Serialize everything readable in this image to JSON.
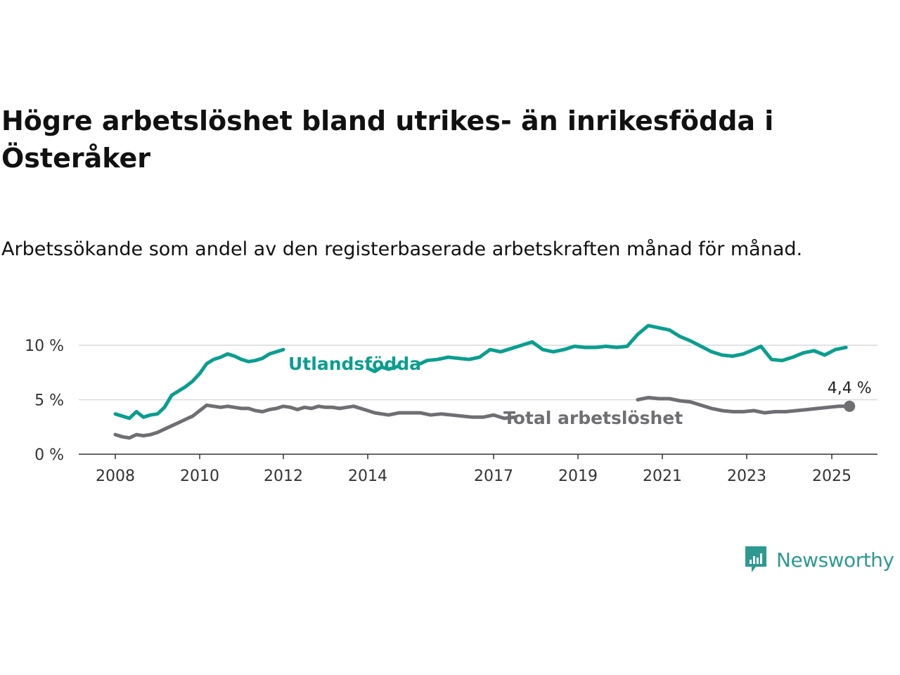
{
  "title": "Högre arbetslöshet bland utrikes- än inrikesfödda i Österåker",
  "subtitle": "Arbetssökande som andel av den registerbaserade arbetskraften månad för månad.",
  "brand": {
    "name": "Newsworthy",
    "color": "#2e9a8f"
  },
  "chart_data": {
    "type": "line",
    "unit": "%",
    "x_ticks": [
      "2008",
      "2010",
      "2012",
      "2014",
      "2017",
      "2019",
      "2021",
      "2023",
      "2025"
    ],
    "y_ticks": [
      "0 %",
      "5 %",
      "10 %"
    ],
    "ylim": [
      0,
      12
    ],
    "xlim": [
      "2007-08",
      "2026-01"
    ],
    "grid": true,
    "legend": "inline labels",
    "end_label": "4,4 %",
    "series": [
      {
        "name": "Utlandsfödda",
        "color": "#0a9e8f",
        "points": [
          [
            "2008-01",
            3.7
          ],
          [
            "2008-03",
            3.5
          ],
          [
            "2008-05",
            3.3
          ],
          [
            "2008-07",
            3.9
          ],
          [
            "2008-09",
            3.4
          ],
          [
            "2008-11",
            3.6
          ],
          [
            "2009-01",
            3.7
          ],
          [
            "2009-03",
            4.3
          ],
          [
            "2009-05",
            5.4
          ],
          [
            "2009-07",
            5.8
          ],
          [
            "2009-09",
            6.2
          ],
          [
            "2009-11",
            6.7
          ],
          [
            "2010-01",
            7.4
          ],
          [
            "2010-03",
            8.3
          ],
          [
            "2010-05",
            8.7
          ],
          [
            "2010-07",
            8.9
          ],
          [
            "2010-09",
            9.2
          ],
          [
            "2010-11",
            9.0
          ],
          [
            "2011-01",
            8.7
          ],
          [
            "2011-03",
            8.5
          ],
          [
            "2011-05",
            8.6
          ],
          [
            "2011-07",
            8.8
          ],
          [
            "2011-09",
            9.2
          ],
          [
            "2011-11",
            9.4
          ],
          [
            "2012-01",
            9.6
          ]
        ],
        "segments": [
          [
            [
              "2008-01",
              3.7
            ],
            [
              "2008-03",
              3.5
            ],
            [
              "2008-05",
              3.3
            ],
            [
              "2008-07",
              3.9
            ],
            [
              "2008-09",
              3.4
            ],
            [
              "2008-11",
              3.6
            ],
            [
              "2009-01",
              3.7
            ],
            [
              "2009-03",
              4.3
            ],
            [
              "2009-05",
              5.4
            ],
            [
              "2009-07",
              5.8
            ],
            [
              "2009-09",
              6.2
            ],
            [
              "2009-11",
              6.7
            ],
            [
              "2010-01",
              7.4
            ],
            [
              "2010-03",
              8.3
            ],
            [
              "2010-05",
              8.7
            ],
            [
              "2010-07",
              8.9
            ],
            [
              "2010-09",
              9.2
            ],
            [
              "2010-11",
              9.0
            ],
            [
              "2011-01",
              8.7
            ],
            [
              "2011-03",
              8.5
            ],
            [
              "2011-05",
              8.6
            ],
            [
              "2011-07",
              8.8
            ],
            [
              "2011-09",
              9.2
            ],
            [
              "2011-11",
              9.4
            ],
            [
              "2012-01",
              9.6
            ]
          ],
          [
            [
              "2014-01",
              7.9
            ],
            [
              "2014-03",
              7.6
            ],
            [
              "2014-05",
              8.0
            ],
            [
              "2014-07",
              7.8
            ],
            [
              "2014-10",
              8.1
            ]
          ],
          [
            [
              "2015-04",
              8.3
            ],
            [
              "2015-06",
              8.6
            ],
            [
              "2015-09",
              8.7
            ],
            [
              "2015-12",
              8.9
            ],
            [
              "2016-03",
              8.8
            ],
            [
              "2016-06",
              8.7
            ],
            [
              "2016-09",
              8.9
            ],
            [
              "2016-12",
              9.6
            ],
            [
              "2017-03",
              9.4
            ],
            [
              "2017-06",
              9.7
            ],
            [
              "2017-09",
              10.0
            ],
            [
              "2017-12",
              10.3
            ],
            [
              "2018-03",
              9.6
            ],
            [
              "2018-06",
              9.4
            ],
            [
              "2018-09",
              9.6
            ],
            [
              "2018-12",
              9.9
            ],
            [
              "2019-03",
              9.8
            ],
            [
              "2019-06",
              9.8
            ],
            [
              "2019-09",
              9.9
            ],
            [
              "2019-12",
              9.8
            ],
            [
              "2020-03",
              9.9
            ],
            [
              "2020-06",
              11.0
            ],
            [
              "2020-09",
              11.8
            ],
            [
              "2020-12",
              11.6
            ],
            [
              "2021-03",
              11.4
            ],
            [
              "2021-06",
              10.8
            ],
            [
              "2021-09",
              10.4
            ],
            [
              "2021-12",
              9.9
            ],
            [
              "2022-03",
              9.4
            ],
            [
              "2022-06",
              9.1
            ],
            [
              "2022-09",
              9.0
            ],
            [
              "2022-12",
              9.2
            ],
            [
              "2023-03",
              9.6
            ],
            [
              "2023-05",
              9.9
            ],
            [
              "2023-08",
              8.7
            ],
            [
              "2023-11",
              8.6
            ],
            [
              "2024-02",
              8.9
            ],
            [
              "2024-05",
              9.3
            ],
            [
              "2024-08",
              9.5
            ],
            [
              "2024-11",
              9.1
            ],
            [
              "2025-02",
              9.6
            ],
            [
              "2025-05",
              9.8
            ]
          ]
        ]
      },
      {
        "name": "Total arbetslöshet",
        "color": "#6e6e73",
        "segments": [
          [
            [
              "2008-01",
              1.8
            ],
            [
              "2008-03",
              1.6
            ],
            [
              "2008-05",
              1.5
            ],
            [
              "2008-07",
              1.8
            ],
            [
              "2008-09",
              1.7
            ],
            [
              "2008-11",
              1.8
            ],
            [
              "2009-01",
              2.0
            ],
            [
              "2009-03",
              2.3
            ],
            [
              "2009-05",
              2.6
            ],
            [
              "2009-07",
              2.9
            ],
            [
              "2009-09",
              3.2
            ],
            [
              "2009-11",
              3.5
            ],
            [
              "2010-01",
              4.0
            ],
            [
              "2010-03",
              4.5
            ],
            [
              "2010-05",
              4.4
            ],
            [
              "2010-07",
              4.3
            ],
            [
              "2010-09",
              4.4
            ],
            [
              "2010-11",
              4.3
            ],
            [
              "2011-01",
              4.2
            ],
            [
              "2011-03",
              4.2
            ],
            [
              "2011-05",
              4.0
            ],
            [
              "2011-07",
              3.9
            ],
            [
              "2011-09",
              4.1
            ],
            [
              "2011-11",
              4.2
            ],
            [
              "2012-01",
              4.4
            ],
            [
              "2012-03",
              4.3
            ],
            [
              "2012-05",
              4.1
            ],
            [
              "2012-07",
              4.3
            ],
            [
              "2012-09",
              4.2
            ],
            [
              "2012-11",
              4.4
            ],
            [
              "2013-01",
              4.3
            ],
            [
              "2013-03",
              4.3
            ],
            [
              "2013-05",
              4.2
            ],
            [
              "2013-07",
              4.3
            ],
            [
              "2013-09",
              4.4
            ],
            [
              "2013-11",
              4.2
            ],
            [
              "2014-01",
              4.0
            ],
            [
              "2014-03",
              3.8
            ],
            [
              "2014-05",
              3.7
            ],
            [
              "2014-07",
              3.6
            ],
            [
              "2014-10",
              3.8
            ],
            [
              "2015-01",
              3.8
            ],
            [
              "2015-04",
              3.8
            ],
            [
              "2015-07",
              3.6
            ],
            [
              "2015-10",
              3.7
            ],
            [
              "2016-01",
              3.6
            ],
            [
              "2016-04",
              3.5
            ],
            [
              "2016-07",
              3.4
            ],
            [
              "2016-10",
              3.4
            ],
            [
              "2017-01",
              3.6
            ],
            [
              "2017-04",
              3.3
            ],
            [
              "2017-07",
              3.4
            ]
          ],
          [
            [
              "2020-06",
              5.0
            ],
            [
              "2020-09",
              5.2
            ],
            [
              "2020-12",
              5.1
            ],
            [
              "2021-03",
              5.1
            ],
            [
              "2021-06",
              4.9
            ],
            [
              "2021-09",
              4.8
            ],
            [
              "2021-12",
              4.5
            ],
            [
              "2022-03",
              4.2
            ],
            [
              "2022-06",
              4.0
            ],
            [
              "2022-09",
              3.9
            ],
            [
              "2022-12",
              3.9
            ],
            [
              "2023-03",
              4.0
            ],
            [
              "2023-06",
              3.8
            ],
            [
              "2023-09",
              3.9
            ],
            [
              "2023-12",
              3.9
            ],
            [
              "2024-03",
              4.0
            ],
            [
              "2024-06",
              4.1
            ],
            [
              "2024-09",
              4.2
            ],
            [
              "2024-12",
              4.3
            ],
            [
              "2025-03",
              4.4
            ],
            [
              "2025-06",
              4.4
            ]
          ]
        ]
      }
    ]
  }
}
